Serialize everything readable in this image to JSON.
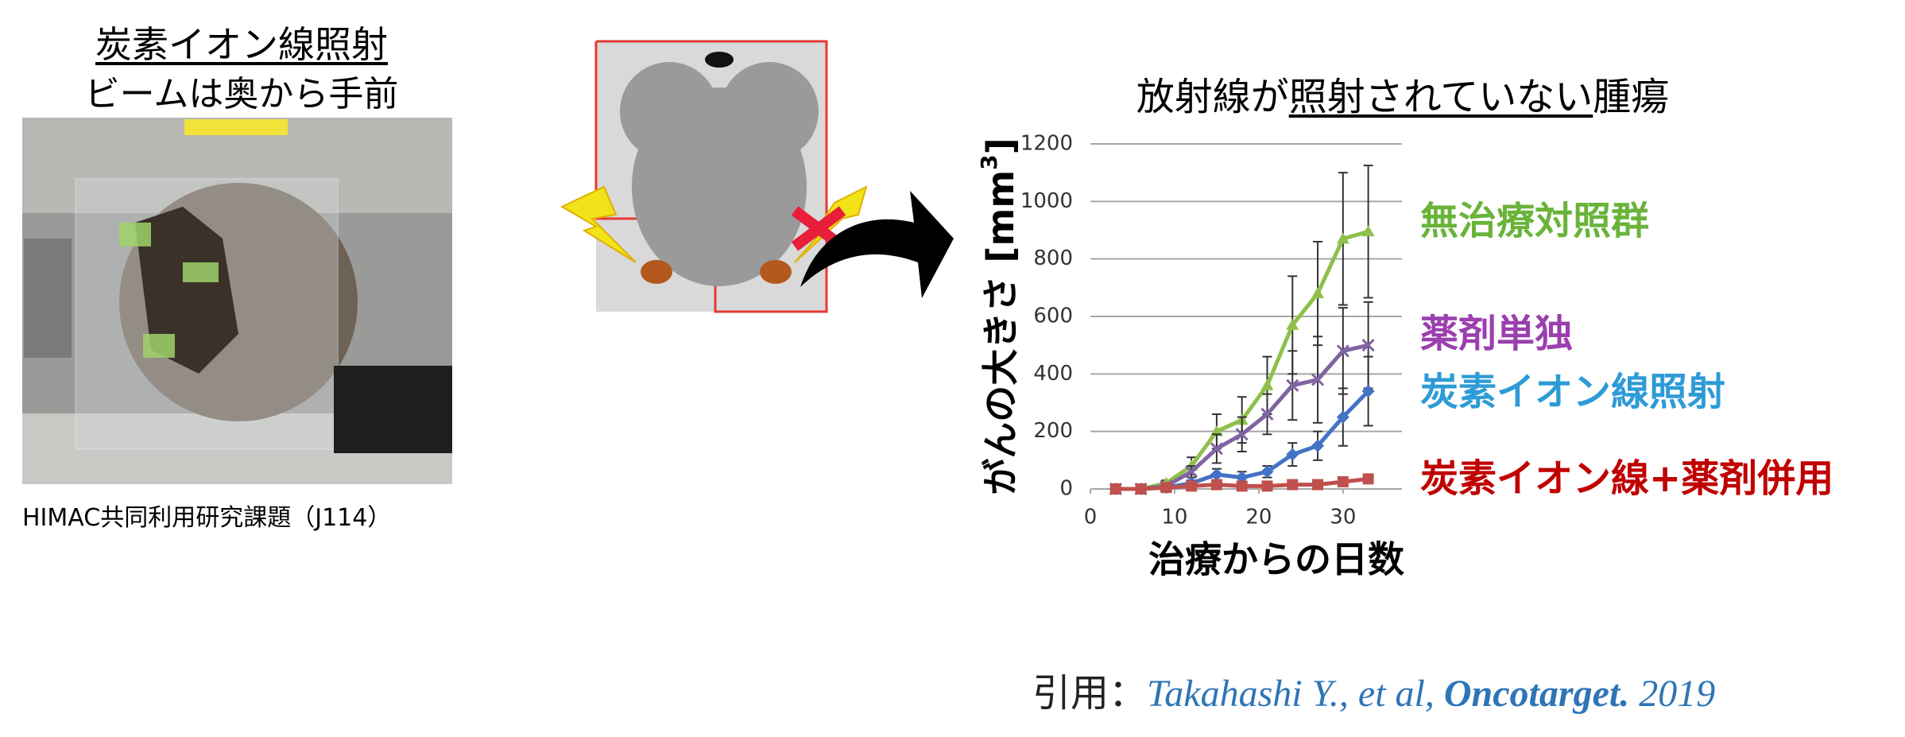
{
  "left_panel": {
    "title": "炭素イオン線照射",
    "subtitle": "ビームは奥から手前",
    "caption": "HIMAC共同利用研究課題（J114）"
  },
  "chart_data": {
    "type": "line",
    "title_parts": [
      "放射線が",
      "照射されていない",
      "腫瘍"
    ],
    "xlabel": "治療からの日数",
    "ylabel_parts": [
      "がんの大きさ [mm",
      "3",
      "]"
    ],
    "x": [
      3,
      6,
      9,
      12,
      15,
      18,
      21,
      24,
      27,
      30,
      33
    ],
    "xlim": [
      0,
      37
    ],
    "xticks": [
      0,
      10,
      20,
      30
    ],
    "ylim": [
      0,
      1200
    ],
    "yticks": [
      0,
      200,
      400,
      600,
      800,
      1000,
      1200
    ],
    "grid": true,
    "series": [
      {
        "name": "無治療対照群",
        "color": "#8fc04b",
        "label_color": "#6ab33a",
        "marker": "triangle",
        "values": [
          0,
          0,
          20,
          80,
          200,
          240,
          360,
          570,
          680,
          870,
          895
        ],
        "errors": [
          0,
          0,
          10,
          30,
          60,
          80,
          100,
          170,
          180,
          230,
          230
        ]
      },
      {
        "name": "薬剤単独",
        "color": "#8064a2",
        "label_color": "#9b3fae",
        "marker": "cross",
        "values": [
          0,
          0,
          10,
          60,
          140,
          190,
          260,
          360,
          380,
          480,
          500
        ],
        "errors": [
          0,
          0,
          10,
          20,
          50,
          60,
          70,
          120,
          150,
          150,
          150
        ]
      },
      {
        "name": "炭素イオン線照射",
        "color": "#4472c4",
        "label_color": "#2e9bd6",
        "marker": "diamond",
        "values": [
          0,
          0,
          5,
          20,
          50,
          40,
          60,
          120,
          150,
          250,
          340
        ],
        "errors": [
          0,
          0,
          5,
          10,
          20,
          20,
          20,
          40,
          50,
          100,
          120
        ]
      },
      {
        "name": "炭素イオン線+薬剤併用",
        "color": "#c0504d",
        "label_color": "#c00000",
        "marker": "square",
        "values": [
          0,
          0,
          5,
          10,
          15,
          10,
          10,
          15,
          15,
          25,
          35
        ]
      }
    ]
  },
  "citation": {
    "prefix": "引用：",
    "authors": "Takahashi Y., et al, ",
    "journal": "Oncotarget.",
    "year": " 2019"
  }
}
